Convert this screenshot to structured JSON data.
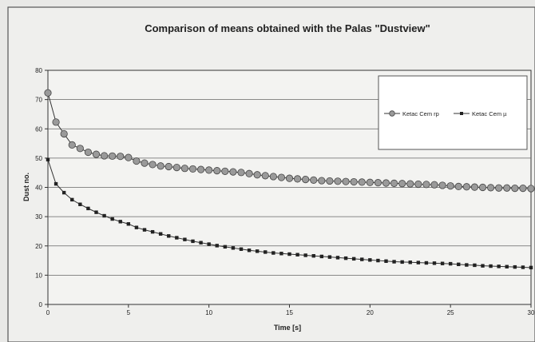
{
  "chart_data": {
    "type": "line",
    "title": "Comparison of means obtained with the Palas \"Dustview\"",
    "xlabel": "Time [s]",
    "ylabel": "Dust no.",
    "xlim": [
      0,
      30
    ],
    "ylim": [
      0,
      80
    ],
    "xticks": [
      0,
      5,
      10,
      15,
      20,
      25,
      30
    ],
    "yticks": [
      0,
      10,
      20,
      30,
      40,
      50,
      60,
      70,
      80
    ],
    "grid": "horizontal",
    "legend_position": "top-right",
    "x": [
      0,
      0.5,
      1,
      1.5,
      2,
      2.5,
      3,
      3.5,
      4,
      4.5,
      5,
      5.5,
      6,
      6.5,
      7,
      7.5,
      8,
      8.5,
      9,
      9.5,
      10,
      10.5,
      11,
      11.5,
      12,
      12.5,
      13,
      13.5,
      14,
      14.5,
      15,
      15.5,
      16,
      16.5,
      17,
      17.5,
      18,
      18.5,
      19,
      19.5,
      20,
      20.5,
      21,
      21.5,
      22,
      22.5,
      23,
      23.5,
      24,
      24.5,
      25,
      25.5,
      26,
      26.5,
      27,
      27.5,
      28,
      28.5,
      29,
      29.5,
      30
    ],
    "series": [
      {
        "name": "Ketac Cem rp",
        "marker": "circle",
        "color": "#9a9a9a",
        "values": [
          72.3,
          62.3,
          58.3,
          54.5,
          53.3,
          52,
          51.3,
          50.8,
          50.7,
          50.6,
          50.2,
          49.0,
          48.3,
          47.8,
          47.3,
          47.1,
          46.8,
          46.5,
          46.3,
          46.1,
          45.9,
          45.7,
          45.5,
          45.3,
          45.1,
          44.7,
          44.3,
          44.0,
          43.7,
          43.4,
          43.1,
          42.9,
          42.7,
          42.5,
          42.3,
          42.2,
          42.1,
          42.0,
          41.9,
          41.8,
          41.7,
          41.6,
          41.5,
          41.4,
          41.3,
          41.2,
          41.1,
          41.0,
          40.9,
          40.7,
          40.5,
          40.3,
          40.2,
          40.1,
          40.0,
          39.9,
          39.8,
          39.8,
          39.7,
          39.7,
          39.6
        ]
      },
      {
        "name": "Ketac Cem µ",
        "marker": "square",
        "color": "#222222",
        "values": [
          49.5,
          41.2,
          38.2,
          35.8,
          34.2,
          32.8,
          31.5,
          30.3,
          29.2,
          28.3,
          27.5,
          26.3,
          25.5,
          24.8,
          24.1,
          23.4,
          22.8,
          22.2,
          21.6,
          21.1,
          20.6,
          20.1,
          19.7,
          19.3,
          18.9,
          18.5,
          18.2,
          17.9,
          17.6,
          17.4,
          17.2,
          17.0,
          16.8,
          16.6,
          16.4,
          16.2,
          16.0,
          15.8,
          15.6,
          15.4,
          15.2,
          15.0,
          14.8,
          14.6,
          14.5,
          14.4,
          14.3,
          14.2,
          14.1,
          14.0,
          13.9,
          13.7,
          13.5,
          13.4,
          13.2,
          13.1,
          13.0,
          12.9,
          12.8,
          12.7,
          12.6
        ]
      }
    ]
  }
}
